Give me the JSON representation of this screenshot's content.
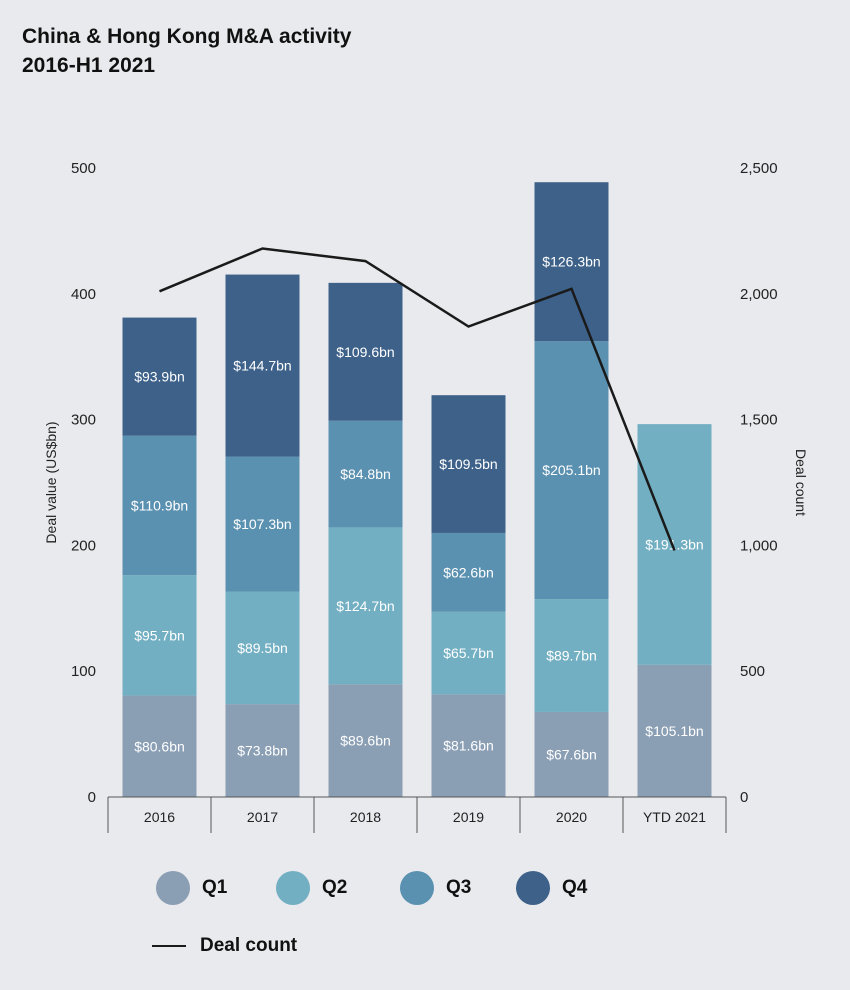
{
  "chart_data": {
    "type": "bar",
    "stacked": true,
    "title_line1": "China & Hong Kong M&A activity",
    "title_line2": "2016-H1 2021",
    "ylabel": "Deal value (US$bn)",
    "y2label": "Deal count",
    "ylim": [
      0,
      500
    ],
    "y2lim": [
      0,
      2500
    ],
    "yticks": [
      "0",
      "100",
      "200",
      "300",
      "400",
      "500"
    ],
    "y2ticks": [
      "0",
      "500",
      "1,000",
      "1,500",
      "2,000",
      "2,500"
    ],
    "categories": [
      "2016",
      "2017",
      "2018",
      "2019",
      "2020",
      "YTD 2021"
    ],
    "series": [
      {
        "name": "Q1",
        "color": "#8a9eb4",
        "values": [
          80.6,
          73.8,
          89.6,
          81.6,
          67.6,
          105.1
        ],
        "labels": [
          "$80.6bn",
          "$73.8bn",
          "$89.6bn",
          "$81.6bn",
          "$67.6bn",
          "$105.1bn"
        ]
      },
      {
        "name": "Q2",
        "color": "#72afc2",
        "values": [
          95.7,
          89.5,
          124.7,
          65.7,
          89.7,
          191.3
        ],
        "labels": [
          "$95.7bn",
          "$89.5bn",
          "$124.7bn",
          "$65.7bn",
          "$89.7bn",
          "$191.3bn"
        ]
      },
      {
        "name": "Q3",
        "color": "#5a90b0",
        "values": [
          110.9,
          107.3,
          84.8,
          62.6,
          205.1,
          null
        ],
        "labels": [
          "$110.9bn",
          "$107.3bn",
          "$84.8bn",
          "$62.6bn",
          "$205.1bn",
          ""
        ]
      },
      {
        "name": "Q4",
        "color": "#3d6189",
        "values": [
          93.9,
          144.7,
          109.6,
          109.5,
          126.3,
          null
        ],
        "labels": [
          "$93.9bn",
          "$144.7bn",
          "$109.6bn",
          "$109.5bn",
          "$126.3bn",
          ""
        ]
      }
    ],
    "deal_count": {
      "name": "Deal count",
      "color": "#1a1a1a",
      "values": [
        2010,
        2180,
        2130,
        1870,
        2020,
        980
      ]
    },
    "legend_position": "bottom",
    "grid": false
  }
}
